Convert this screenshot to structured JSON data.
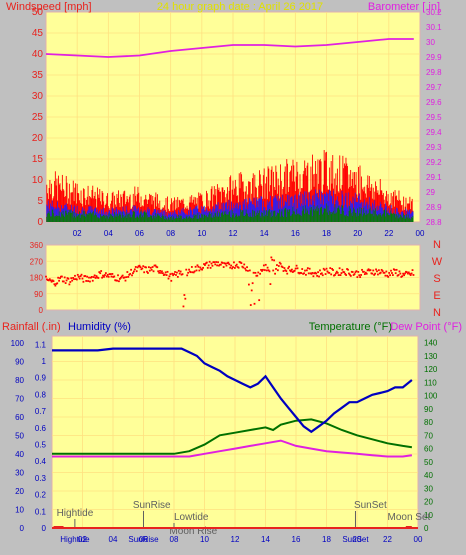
{
  "colors": {
    "background": "#c0c0c0",
    "plot_bg": "#ffff99",
    "grid": "#ffe080",
    "wind_title": "#e8231e",
    "baro_title": "#e020e0",
    "header": "#e0e000",
    "rain": "#e8231e",
    "humidity": "#0000c0",
    "temperature": "#007000",
    "dewpoint": "#e020e0",
    "tide": "#606060"
  },
  "chart_data": [
    {
      "type": "line",
      "title": "24 hour graph date : April 26 2017",
      "ylabel": "Windspeed [mph]",
      "y2label": "Barometer [.in]",
      "ylim": [
        0,
        50
      ],
      "y2lim": [
        28.8,
        30.2
      ],
      "xlim": [
        0,
        24
      ],
      "grid": true,
      "yticks": [
        "0",
        "5",
        "10",
        "15",
        "20",
        "25",
        "30",
        "35",
        "40",
        "45",
        "50"
      ],
      "y2ticks": [
        "28.8",
        "28.9",
        "29",
        "29.1",
        "29.2",
        "29.3",
        "29.4",
        "29.5",
        "29.6",
        "29.7",
        "29.8",
        "29.9",
        "30",
        "30.1",
        "30.2"
      ],
      "xticks": [
        "02",
        "04",
        "06",
        "08",
        "10",
        "12",
        "14",
        "16",
        "18",
        "20",
        "22",
        "00"
      ],
      "series": [
        {
          "name": "Barometer",
          "axis": "right",
          "x": [
            0,
            2,
            4,
            6,
            8,
            10,
            12,
            14,
            16,
            18,
            20,
            22,
            23.6
          ],
          "y": [
            29.92,
            29.91,
            29.9,
            29.91,
            29.94,
            29.96,
            29.98,
            29.98,
            29.97,
            29.98,
            30.0,
            30.02,
            30.02
          ]
        },
        {
          "name": "Gust",
          "axis": "left",
          "x": [
            0,
            2,
            4,
            6,
            8,
            10,
            12,
            14,
            16,
            18,
            20,
            22,
            23.6
          ],
          "y": [
            9,
            7,
            5,
            6,
            4,
            5,
            8,
            9,
            11,
            12,
            10,
            6,
            4
          ]
        },
        {
          "name": "Average",
          "axis": "left",
          "x": [
            0,
            2,
            4,
            6,
            8,
            10,
            12,
            14,
            16,
            18,
            20,
            22,
            23.6
          ],
          "y": [
            4,
            3,
            2.5,
            3,
            2,
            3,
            4,
            4.5,
            5,
            6,
            5,
            3,
            2
          ]
        },
        {
          "name": "Wind",
          "axis": "left",
          "x": [
            0,
            2,
            4,
            6,
            8,
            10,
            12,
            14,
            16,
            18,
            20,
            22,
            23.6
          ],
          "y": [
            2,
            2,
            1.5,
            2,
            1,
            1.5,
            2,
            2,
            2.5,
            3,
            2.5,
            2,
            1
          ]
        }
      ]
    },
    {
      "type": "scatter",
      "ylim": [
        0,
        360
      ],
      "xlim": [
        0,
        24
      ],
      "grid": true,
      "yticks": [
        "0",
        "90",
        "180",
        "270",
        "360"
      ],
      "compass": [
        "N",
        "W",
        "S",
        "E",
        "N"
      ],
      "series": [
        {
          "name": "Wind direction",
          "x": [
            0,
            0.5,
            1,
            1.5,
            2,
            2.5,
            3,
            3.5,
            4,
            4.5,
            5,
            5.5,
            6,
            6.5,
            7,
            7.5,
            8,
            8.5,
            9,
            9.5,
            10,
            10.5,
            11,
            11.5,
            12,
            12.5,
            13,
            13.5,
            14,
            14.5,
            15,
            15.5,
            16,
            16.5,
            17,
            17.5,
            18,
            18.5,
            19,
            19.5,
            20,
            20.5,
            21,
            21.5,
            22,
            22.5,
            23,
            23.6
          ],
          "y": [
            170,
            150,
            175,
            160,
            185,
            170,
            180,
            200,
            190,
            180,
            175,
            210,
            230,
            220,
            230,
            215,
            180,
            200,
            210,
            225,
            240,
            250,
            260,
            240,
            250,
            255,
            230,
            200,
            240,
            200,
            250,
            220,
            230,
            215,
            210,
            200,
            220,
            205,
            215,
            210,
            200,
            205,
            215,
            210,
            200,
            210,
            190,
            205
          ]
        }
      ]
    },
    {
      "type": "line",
      "ylabel": "Rainfall (.in)",
      "ylabel2": "Humidity (%)",
      "y2label": "Temperature (°F)",
      "y2label2": "Dew Point (°F)",
      "ylim": [
        0,
        100
      ],
      "yrain_lim": [
        0,
        1.15
      ],
      "y2lim": [
        0,
        145
      ],
      "xlim": [
        0,
        24
      ],
      "grid": true,
      "yticks": [
        "0",
        "10",
        "20",
        "30",
        "40",
        "50",
        "60",
        "70",
        "80",
        "90",
        "100"
      ],
      "yrain_ticks": [
        "0",
        "0.1",
        "0.2",
        "0.3",
        "0.4",
        "0.5",
        "0.6",
        "0.7",
        "0.8",
        "0.9",
        "1",
        "1.1"
      ],
      "y2ticks": [
        "0",
        "10",
        "20",
        "30",
        "40",
        "50",
        "60",
        "70",
        "80",
        "90",
        "100",
        "110",
        "120",
        "130",
        "140"
      ],
      "xticks": [
        "02",
        "04",
        "06",
        "08",
        "10",
        "12",
        "14",
        "16",
        "18",
        "20",
        "22",
        "00"
      ],
      "series": [
        {
          "name": "Humidity",
          "axis": "left",
          "x": [
            0,
            1,
            2,
            3,
            4,
            5,
            6,
            7,
            8,
            8.5,
            9,
            9.5,
            10,
            10.5,
            11,
            11.5,
            12,
            12.5,
            13,
            13.5,
            14,
            14.5,
            15,
            15.5,
            16,
            16.5,
            17,
            17.5,
            18,
            18.5,
            19,
            19.5,
            20,
            20.5,
            21,
            21.5,
            22,
            22.5,
            23,
            23.6
          ],
          "y": [
            96,
            96,
            96,
            96,
            97,
            97,
            97,
            97,
            97,
            97,
            95,
            93,
            89,
            87,
            85,
            82,
            80,
            78,
            76,
            78,
            82,
            76,
            70,
            65,
            60,
            55,
            52,
            55,
            58,
            62,
            65,
            68,
            68,
            70,
            72,
            73,
            74,
            76,
            76,
            80
          ]
        },
        {
          "name": "Temperature",
          "axis": "right",
          "x": [
            0,
            2,
            4,
            6,
            8,
            9,
            10,
            11,
            12,
            13,
            14,
            14.5,
            15,
            16,
            17,
            18,
            19,
            20,
            21,
            22,
            23,
            23.6
          ],
          "y": [
            56,
            56,
            56,
            56,
            56,
            58,
            63,
            70,
            72,
            74,
            76,
            74,
            78,
            81,
            82,
            79,
            74,
            70,
            67,
            64,
            62,
            61
          ]
        },
        {
          "name": "Dew Point",
          "axis": "right",
          "x": [
            0,
            2,
            4,
            6,
            8,
            9,
            10,
            11,
            12,
            13,
            14,
            15,
            16,
            17,
            18,
            19,
            20,
            21,
            22,
            23,
            23.6
          ],
          "y": [
            54,
            54,
            54,
            54,
            54,
            54,
            56,
            58,
            60,
            62,
            64,
            66,
            62,
            60,
            58,
            57,
            56,
            55,
            54,
            54,
            55
          ]
        },
        {
          "name": "Rainfall",
          "axis": "rain",
          "x": [
            0,
            24
          ],
          "y": [
            0,
            0
          ]
        }
      ],
      "annotations": [
        {
          "text": "Hightide",
          "x": 0.3,
          "row": 1
        },
        {
          "text": "SunRise",
          "x": 5.3,
          "row": 2
        },
        {
          "text": "Lowtide",
          "x": 8.0,
          "row": 3
        },
        {
          "text": "Moon Rise",
          "x": 7.7,
          "row": 4
        },
        {
          "text": "SunSet",
          "x": 19.8,
          "row": 2
        },
        {
          "text": "Moon Set",
          "x": 22.0,
          "row": 3
        }
      ],
      "xaxis_markers": [
        "Hightide",
        "SunRise",
        "SunSet"
      ]
    }
  ]
}
